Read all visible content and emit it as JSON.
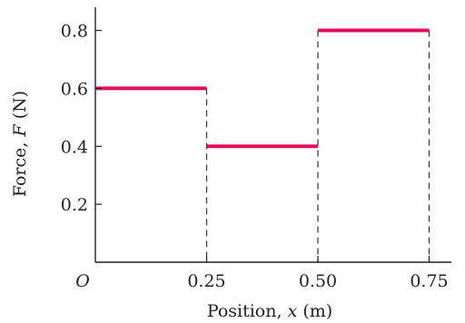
{
  "chart_data": {
    "type": "line",
    "title": "",
    "xlabel": "Position, x (m)",
    "ylabel": "Force, F (N)",
    "xlim": [
      0,
      0.8
    ],
    "ylim": [
      0,
      0.88
    ],
    "x_ticks": [
      {
        "value": 0,
        "label": "O"
      },
      {
        "value": 0.25,
        "label": "0.25"
      },
      {
        "value": 0.5,
        "label": "0.50"
      },
      {
        "value": 0.75,
        "label": "0.75"
      }
    ],
    "y_ticks": [
      {
        "value": 0.2,
        "label": "0.2"
      },
      {
        "value": 0.4,
        "label": "0.4"
      },
      {
        "value": 0.6,
        "label": "0.6"
      },
      {
        "value": 0.8,
        "label": "0.8"
      }
    ],
    "segments": [
      {
        "x_start": 0,
        "x_end": 0.25,
        "force": 0.6
      },
      {
        "x_start": 0.25,
        "x_end": 0.5,
        "force": 0.4
      },
      {
        "x_start": 0.5,
        "x_end": 0.75,
        "force": 0.8
      }
    ],
    "color": "#e0105a",
    "grid": false,
    "legend": "none"
  }
}
